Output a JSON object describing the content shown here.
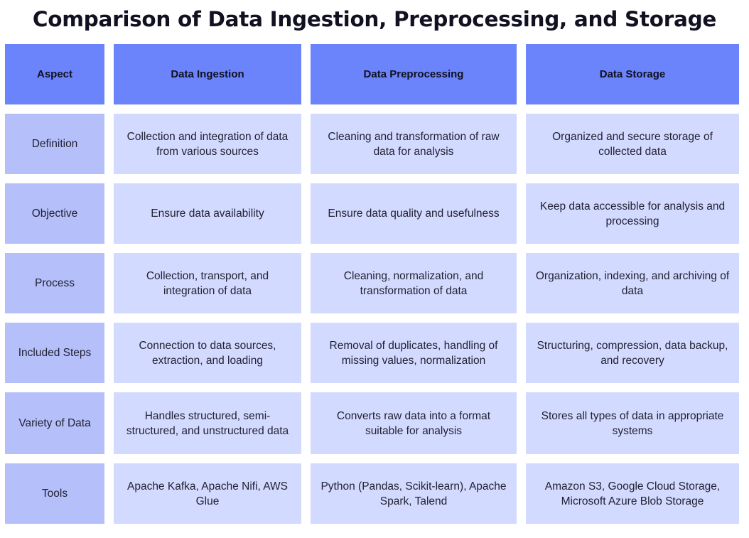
{
  "title": "Comparison of Data Ingestion, Preprocessing, and Storage",
  "headers": [
    "Aspect",
    "Data Ingestion",
    "Data Preprocessing",
    "Data Storage"
  ],
  "rows": [
    {
      "aspect": "Definition",
      "cells": [
        "Collection and integration of data from various sources",
        "Cleaning and transformation of raw data for analysis",
        "Organized and secure storage of collected data"
      ]
    },
    {
      "aspect": "Objective",
      "cells": [
        "Ensure data availability",
        "Ensure data quality and usefulness",
        "Keep data accessible for analysis and processing"
      ]
    },
    {
      "aspect": "Process",
      "cells": [
        "Collection, transport, and integration of data",
        "Cleaning, normalization, and transformation of data",
        "Organization, indexing, and archiving of data"
      ]
    },
    {
      "aspect": "Included Steps",
      "cells": [
        "Connection to data sources, extraction, and loading",
        "Removal of duplicates, handling of missing values, normalization",
        "Structuring, compression, data backup, and recovery"
      ]
    },
    {
      "aspect": "Variety of Data",
      "cells": [
        "Handles structured, semi-structured, and unstructured data",
        "Converts raw data into a format suitable for analysis",
        "Stores all types of data in appropriate systems"
      ]
    },
    {
      "aspect": "Tools",
      "cells": [
        "Apache Kafka, Apache Nifi, AWS Glue",
        "Python (Pandas, Scikit-learn), Apache Spark, Talend",
        "Amazon S3, Google Cloud Storage, Microsoft Azure Blob Storage"
      ]
    }
  ]
}
